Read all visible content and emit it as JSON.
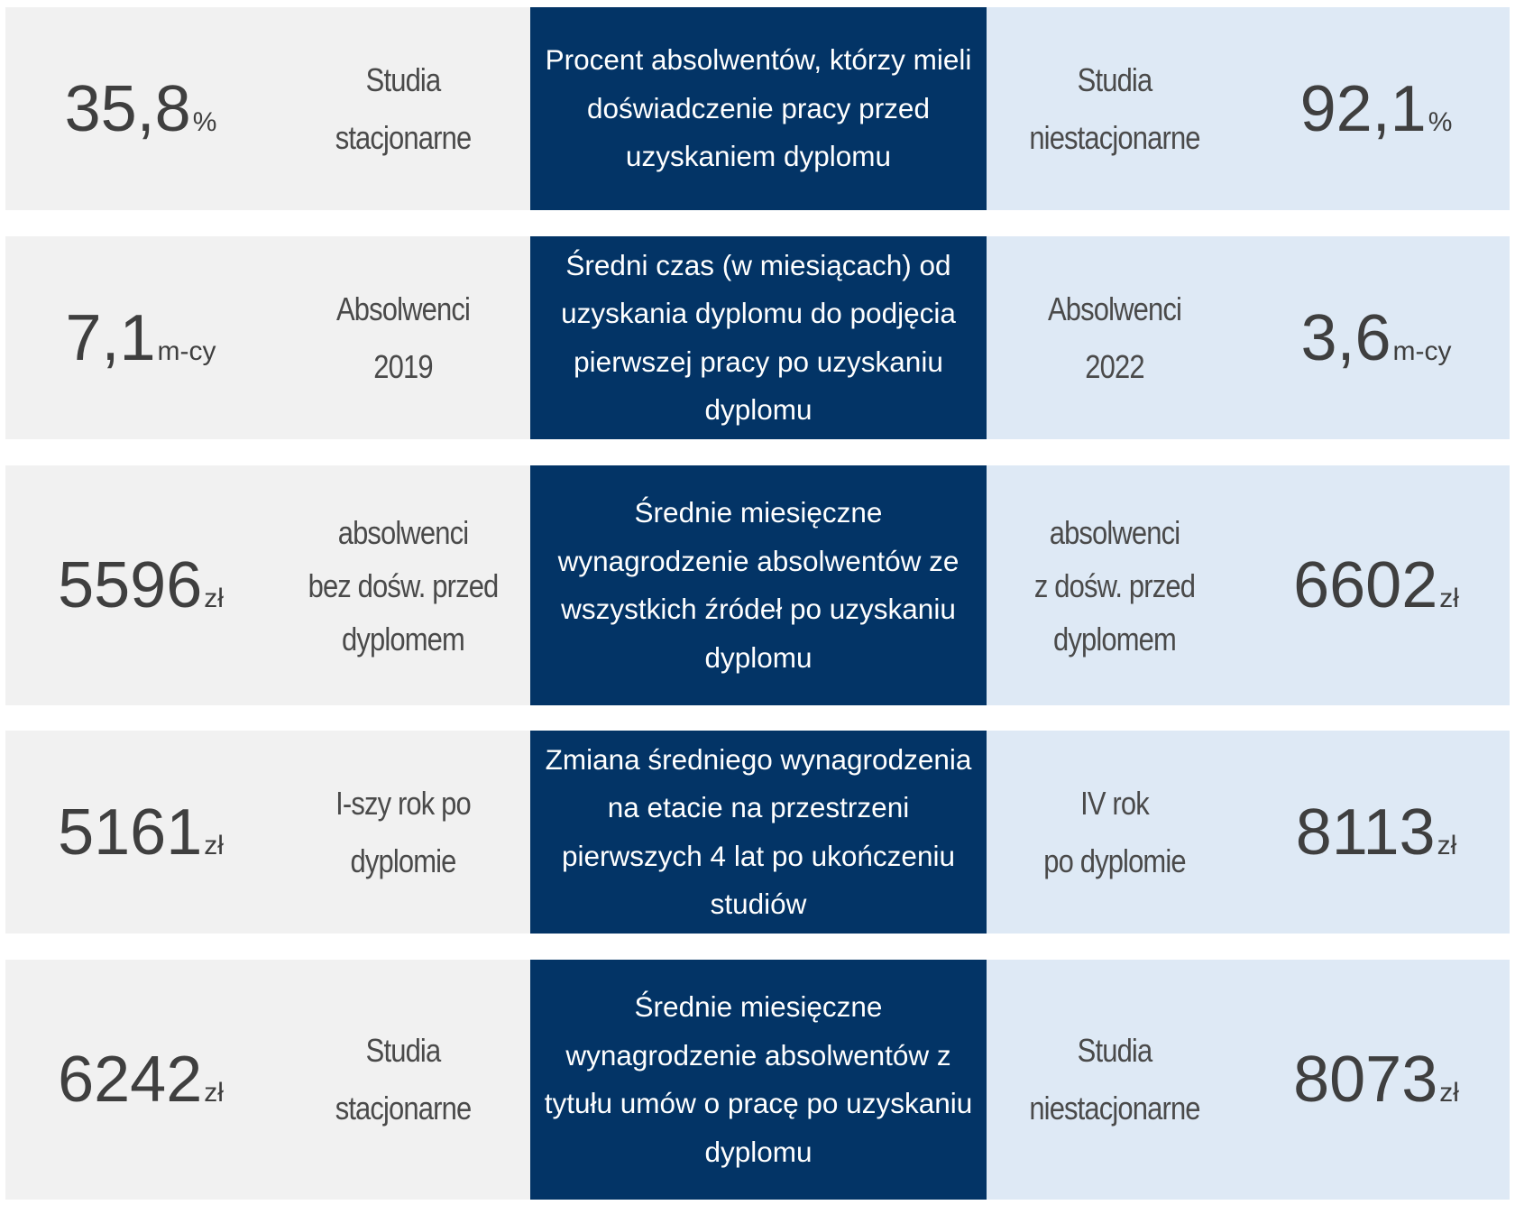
{
  "rows": [
    {
      "left": {
        "value": "35,8",
        "unit": "%",
        "label_lines": [
          "Studia",
          "stacjonarne"
        ]
      },
      "center": "Procent absolwentów, którzy mieli doświadczenie pracy przed uzyskaniem dyplomu",
      "right": {
        "value": "92,1",
        "unit": "%",
        "label_lines": [
          "Studia",
          "niestacjonarne"
        ]
      }
    },
    {
      "left": {
        "value": "7,1",
        "unit": "m-cy",
        "label_lines": [
          "Absolwenci",
          "2019"
        ]
      },
      "center": "Średni czas (w miesiącach) od uzyskania dyplomu do podjęcia pierwszej pracy po uzyskaniu dyplomu",
      "right": {
        "value": "3,6",
        "unit": "m-cy",
        "label_lines": [
          "Absolwenci",
          "2022"
        ]
      }
    },
    {
      "left": {
        "value": "5596",
        "unit": "zł",
        "label_lines": [
          "absolwenci",
          "bez dośw. przed",
          "dyplomem"
        ]
      },
      "center": "Średnie miesięczne wynagrodzenie absolwentów ze wszystkich źródeł po uzyskaniu dyplomu",
      "right": {
        "value": "6602",
        "unit": "zł",
        "label_lines": [
          "absolwenci",
          "z dośw. przed",
          "dyplomem"
        ]
      }
    },
    {
      "left": {
        "value": "5161",
        "unit": "zł",
        "label_lines": [
          "I-szy rok po",
          "dyplomie"
        ]
      },
      "center": "Zmiana średniego wynagrodzenia na etacie na przestrzeni pierwszych 4 lat po ukończeniu studiów",
      "right": {
        "value": "8113",
        "unit": "zł",
        "label_lines": [
          "IV rok",
          "po dyplomie"
        ]
      }
    },
    {
      "left": {
        "value": "6242",
        "unit": "zł",
        "label_lines": [
          "Studia",
          "stacjonarne"
        ]
      },
      "center": "Średnie miesięczne wynagrodzenie absolwentów z tytułu umów o pracę po uzyskaniu dyplomu",
      "right": {
        "value": "8073",
        "unit": "zł",
        "label_lines": [
          "Studia",
          "niestacjonarne"
        ]
      }
    }
  ],
  "colors": {
    "left_bg": "#f1f1f1",
    "right_bg": "#dee9f5",
    "center_bg": "#033466",
    "value_text": "#3f3f3f"
  }
}
